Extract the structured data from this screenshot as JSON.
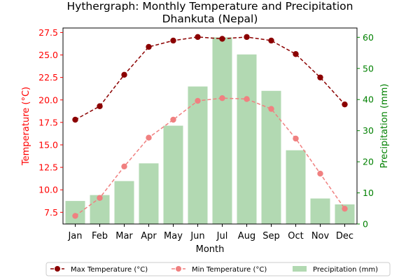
{
  "chart_data": {
    "type": "bar",
    "title": "Hythergraph: Monthly Temperature and Precipitation",
    "subtitle": "Dhankuta (Nepal)",
    "xlabel": "Month",
    "ylabel_left": "Temperature (°C)",
    "ylabel_right": "Precipitation (mm)",
    "categories": [
      "Jan",
      "Feb",
      "Mar",
      "Apr",
      "May",
      "Jun",
      "Jul",
      "Aug",
      "Sep",
      "Oct",
      "Nov",
      "Dec"
    ],
    "ylim_left": [
      6.2,
      28.0
    ],
    "ylim_right": [
      0,
      63
    ],
    "yticks_left": [
      "7.5",
      "10.0",
      "12.5",
      "15.0",
      "17.5",
      "20.0",
      "22.5",
      "25.0",
      "27.5"
    ],
    "yticks_right": [
      "0",
      "10",
      "20",
      "30",
      "40",
      "50",
      "60"
    ],
    "series": [
      {
        "name": "Max Temperature (°C)",
        "axis": "left",
        "kind": "line",
        "color": "#8b0000",
        "values": [
          17.8,
          19.3,
          22.8,
          25.9,
          26.6,
          27.0,
          26.8,
          27.0,
          26.6,
          25.1,
          22.5,
          19.5
        ]
      },
      {
        "name": "Min Temperature (°C)",
        "axis": "left",
        "kind": "line",
        "color": "#f08080",
        "values": [
          7.1,
          9.1,
          12.6,
          15.8,
          17.8,
          19.9,
          20.2,
          20.1,
          19.0,
          15.7,
          11.8,
          7.9
        ]
      },
      {
        "name": "Precipitation (mm)",
        "axis": "right",
        "kind": "bar",
        "color": "#b2d9b2",
        "values": [
          7.4,
          9.3,
          13.8,
          19.5,
          31.6,
          44.2,
          60.0,
          54.5,
          42.8,
          23.7,
          8.2,
          6.3
        ]
      }
    ],
    "axis_colors": {
      "left": "#ff0000",
      "right": "#008000"
    },
    "legend": "bottom-center",
    "grid": false
  }
}
